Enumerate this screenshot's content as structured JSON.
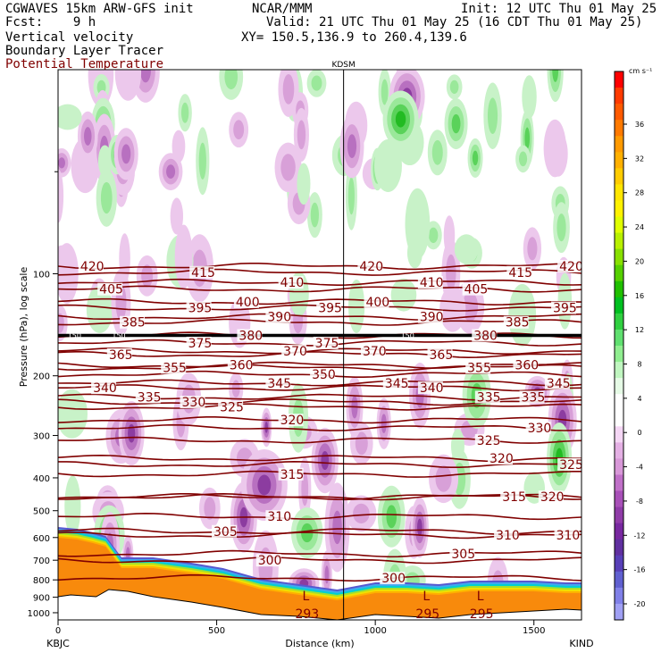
{
  "header": {
    "left1": "CGWAVES 15km ARW-GFS init",
    "left2": "Fcst:    9 h",
    "left3": "Vertical velocity",
    "left4": "Boundary Layer Tracer",
    "left5": "Potential Temperature",
    "center1": "NCAR/MMM",
    "right1": "Init: 12 UTC Thu 01 May 25",
    "right2": "Valid: 21 UTC Thu 01 May 25 (16 CDT Thu 01 May 25)",
    "right3": "XY= 150.5,136.9 to 260.4,139.6"
  },
  "station_label": "KDSM",
  "endpoints": {
    "left": "KBJC",
    "right": "KIND"
  },
  "colors": {
    "theta": "#800000",
    "terrain": "#f88a0c"
  },
  "chart_data": {
    "type": "heatmap",
    "title": "Vertical velocity / Boundary Layer Tracer / Potential Temperature",
    "xlabel": "Distance (km)",
    "ylabel": "Pressure (hPa), log scale",
    "x_ticks": [
      "0",
      "500",
      "1000",
      "1500"
    ],
    "y_ticks": [
      "100",
      "200",
      "300",
      "400",
      "500",
      "600",
      "700",
      "800",
      "900",
      "1000"
    ],
    "xlim": [
      0,
      1650
    ],
    "ylim": [
      1050,
      25
    ],
    "y_log": true,
    "colorbar": {
      "unit": "cm s⁻¹",
      "labels": [
        "36",
        "32",
        "28",
        "24",
        "20",
        "16",
        "12",
        "8",
        "4",
        "0",
        "-4",
        "-8",
        "-12",
        "-16",
        "-20"
      ],
      "colors": [
        "#ff0000",
        "#ff3a00",
        "#ff5a00",
        "#ff7a00",
        "#ff9a00",
        "#ffb000",
        "#ffcc00",
        "#ffe600",
        "#fff200",
        "#e0ff00",
        "#b8f000",
        "#88e000",
        "#55d000",
        "#20c000",
        "#00c020",
        "#30d040",
        "#60e070",
        "#90ee90",
        "#c0f6c0",
        "#e6fbe6",
        "#ffffff",
        "#ffffff",
        "#f4d6f4",
        "#e4b0e4",
        "#d898d8",
        "#c070c8",
        "#a850b8",
        "#903ca8",
        "#7828a0",
        "#6030a0",
        "#5840b8",
        "#6060d0",
        "#8080e8",
        "#a0a0f4"
      ]
    },
    "station_marker_km": 900,
    "theta_contours": [
      {
        "label": "420",
        "pressure": 95,
        "label_x_km": [
          70,
          950,
          1580
        ]
      },
      {
        "label": "415",
        "pressure": 99,
        "label_x_km": [
          420,
          1420
        ]
      },
      {
        "label": "410",
        "pressure": 106,
        "label_x_km": [
          700,
          1140
        ]
      },
      {
        "label": "405",
        "pressure": 111,
        "label_x_km": [
          130,
          1280
        ]
      },
      {
        "label": "400",
        "pressure": 121,
        "label_x_km": [
          560,
          970
        ]
      },
      {
        "label": "395",
        "pressure": 126,
        "label_x_km": [
          410,
          820,
          1560
        ]
      },
      {
        "label": "390",
        "pressure": 134,
        "label_x_km": [
          660,
          1140
        ]
      },
      {
        "label": "385",
        "pressure": 139,
        "label_x_km": [
          200,
          1410
        ]
      },
      {
        "label": "380",
        "pressure": 152,
        "label_x_km": [
          570,
          1310
        ]
      },
      {
        "label": "375",
        "pressure": 160,
        "label_x_km": [
          410,
          810
        ]
      },
      {
        "label": "370",
        "pressure": 169,
        "label_x_km": [
          710,
          960
        ]
      },
      {
        "label": "365",
        "pressure": 173,
        "label_x_km": [
          160,
          1170
        ]
      },
      {
        "label": "360",
        "pressure": 186,
        "label_x_km": [
          540,
          1440
        ]
      },
      {
        "label": "355",
        "pressure": 189,
        "label_x_km": [
          330,
          1290
        ]
      },
      {
        "label": "350",
        "pressure": 198,
        "label_x_km": [
          800
        ]
      },
      {
        "label": "345",
        "pressure": 210,
        "label_x_km": [
          660,
          1030,
          1540
        ]
      },
      {
        "label": "340",
        "pressure": 217,
        "label_x_km": [
          110,
          1140
        ]
      },
      {
        "label": "335",
        "pressure": 231,
        "label_x_km": [
          250,
          1320,
          1460
        ]
      },
      {
        "label": "330",
        "pressure": 239,
        "label_x_km": [
          390
        ]
      },
      {
        "label": "325",
        "pressure": 247,
        "label_x_km": [
          510
        ]
      },
      {
        "label": "320",
        "pressure": 270,
        "label_x_km": [
          700
        ]
      },
      {
        "label": "330",
        "pressure": 285,
        "label_x_km": [
          1480
        ]
      },
      {
        "label": "325",
        "pressure": 310,
        "label_x_km": [
          1320
        ]
      },
      {
        "label": "320",
        "pressure": 350,
        "label_x_km": [
          1360
        ]
      },
      {
        "label": "325",
        "pressure": 365,
        "label_x_km": [
          1580
        ]
      },
      {
        "label": "315",
        "pressure": 390,
        "label_x_km": [
          700
        ]
      },
      {
        "label": "315",
        "pressure": 455,
        "label_x_km": [
          1400
        ]
      },
      {
        "label": "320",
        "pressure": 455,
        "label_x_km": [
          1520
        ]
      },
      {
        "label": "310",
        "pressure": 520,
        "label_x_km": [
          660
        ]
      },
      {
        "label": "305",
        "pressure": 575,
        "label_x_km": [
          490
        ]
      },
      {
        "label": "310",
        "pressure": 590,
        "label_x_km": [
          1380,
          1570
        ]
      },
      {
        "label": "300",
        "pressure": 700,
        "label_x_km": [
          630
        ]
      },
      {
        "label": "305",
        "pressure": 670,
        "label_x_km": [
          1240
        ]
      },
      {
        "label": "300",
        "pressure": 790,
        "label_x_km": [
          1020
        ]
      }
    ],
    "tropopause_label": "150",
    "low_theta": [
      {
        "label": "L",
        "value": "293",
        "x_km": 770
      },
      {
        "label": "L",
        "value": "295",
        "x_km": 1150
      },
      {
        "label": "L",
        "value": "295",
        "x_km": 1320
      }
    ]
  }
}
